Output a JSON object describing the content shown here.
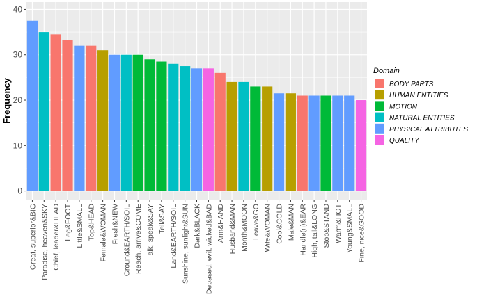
{
  "chart_data": {
    "type": "bar",
    "title": "",
    "xlabel": "",
    "ylabel": "Frequency",
    "ylim": [
      -1.9,
      41.6
    ],
    "yticks": [
      0,
      10,
      20,
      30,
      40
    ],
    "grid": true,
    "legend_position": "right",
    "legend_title": "Domain",
    "domains": [
      {
        "name": "BODY PARTS",
        "color": "#F8766D"
      },
      {
        "name": "HUMAN ENTITIES",
        "color": "#B79F00"
      },
      {
        "name": "MOTION",
        "color": "#00BA38"
      },
      {
        "name": "NATURAL ENTITIES",
        "color": "#00BFC4"
      },
      {
        "name": "PHYSICAL ATTRIBUTES",
        "color": "#619CFF"
      },
      {
        "name": "QUALITY",
        "color": "#F564E3"
      }
    ],
    "bars": [
      {
        "label": "Great, superior&BIG",
        "value": 37.5,
        "domain": "PHYSICAL ATTRIBUTES"
      },
      {
        "label": "Paradise, heaven&SKY",
        "value": 35,
        "domain": "NATURAL ENTITIES"
      },
      {
        "label": "Chief, leader&HEAD",
        "value": 34.5,
        "domain": "BODY PARTS"
      },
      {
        "label": "Leg&FOOT",
        "value": 33.3,
        "domain": "BODY PARTS"
      },
      {
        "label": "Little&SMALL",
        "value": 32,
        "domain": "PHYSICAL ATTRIBUTES"
      },
      {
        "label": "Top&HEAD",
        "value": 32,
        "domain": "BODY PARTS"
      },
      {
        "label": "Female&WOMAN",
        "value": 31,
        "domain": "HUMAN ENTITIES"
      },
      {
        "label": "Fresh&NEW",
        "value": 30,
        "domain": "PHYSICAL ATTRIBUTES"
      },
      {
        "label": "Ground&EARTH/SOIL",
        "value": 30,
        "domain": "NATURAL ENTITIES"
      },
      {
        "label": "Reach, arrive&COME",
        "value": 30,
        "domain": "MOTION"
      },
      {
        "label": "Talk, speak&SAY",
        "value": 29,
        "domain": "MOTION"
      },
      {
        "label": "Tell&SAY",
        "value": 28.5,
        "domain": "MOTION"
      },
      {
        "label": "Land&EARTH/SOIL",
        "value": 28,
        "domain": "NATURAL ENTITIES"
      },
      {
        "label": "Sunshine, sunlight&SUN",
        "value": 27.5,
        "domain": "NATURAL ENTITIES"
      },
      {
        "label": "Dark&BLACK",
        "value": 27,
        "domain": "PHYSICAL ATTRIBUTES"
      },
      {
        "label": "Debased, evil, wicked&BAD",
        "value": 27,
        "domain": "QUALITY"
      },
      {
        "label": "Arm&HAND",
        "value": 26,
        "domain": "BODY PARTS"
      },
      {
        "label": "Husband&MAN",
        "value": 24,
        "domain": "HUMAN ENTITIES"
      },
      {
        "label": "Month&MOON",
        "value": 24,
        "domain": "NATURAL ENTITIES"
      },
      {
        "label": "Leave&GO",
        "value": 23,
        "domain": "MOTION"
      },
      {
        "label": "Wife&WOMAN",
        "value": 23,
        "domain": "HUMAN ENTITIES"
      },
      {
        "label": "Cool&COLD",
        "value": 21.5,
        "domain": "PHYSICAL ATTRIBUTES"
      },
      {
        "label": "Male&MAN",
        "value": 21.5,
        "domain": "HUMAN ENTITIES"
      },
      {
        "label": "Handle(n)&EAR",
        "value": 21,
        "domain": "BODY PARTS"
      },
      {
        "label": "High, tall&LONG",
        "value": 21,
        "domain": "PHYSICAL ATTRIBUTES"
      },
      {
        "label": "Stop&STAND",
        "value": 21,
        "domain": "MOTION"
      },
      {
        "label": "Warm&HOT",
        "value": 21,
        "domain": "PHYSICAL ATTRIBUTES"
      },
      {
        "label": "Young&SMALL",
        "value": 21,
        "domain": "PHYSICAL ATTRIBUTES"
      },
      {
        "label": "Fine, nice&GOOD",
        "value": 20,
        "domain": "QUALITY"
      }
    ]
  }
}
